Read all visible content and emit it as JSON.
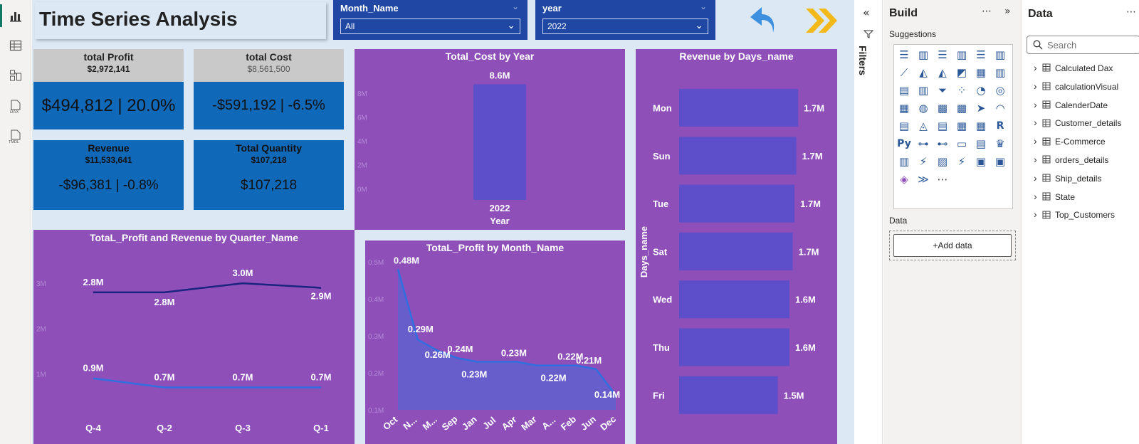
{
  "report": {
    "title": "Time Series Analysis"
  },
  "slicers": [
    {
      "name": "Month_Name",
      "value": "All"
    },
    {
      "name": "year",
      "value": "2022"
    }
  ],
  "nav": {
    "back_icon": "back-arrow-icon",
    "forward_icon": "double-chevron-right-icon"
  },
  "kpis": {
    "profit": {
      "name": "total Profit",
      "value": "$2,972,141",
      "big": "$494,812 | 20.0%"
    },
    "cost": {
      "name": "total Cost",
      "value": "$8,561,500",
      "big": "-$591,192 | -6.5%"
    },
    "revenue": {
      "name": "Revenue",
      "value": "$11,533,641",
      "big": "-$96,381 | -0.8%"
    },
    "quantity": {
      "name": "Total Quantity",
      "value": "$107,218",
      "big": "$107,218"
    }
  },
  "chart_data": [
    {
      "type": "bar",
      "title": "Total_Cost by Year",
      "categories": [
        "2022"
      ],
      "values": [
        8.6
      ],
      "data_labels": [
        "8.6M"
      ],
      "xlabel": "Year",
      "y_ticks": [
        "8M",
        "6M",
        "4M",
        "2M",
        "0M"
      ],
      "ylim": [
        0,
        9
      ]
    },
    {
      "type": "bar",
      "orientation": "horizontal",
      "title": "Revenue by Days_name",
      "categories": [
        "Mon",
        "Sun",
        "Tue",
        "Sat",
        "Wed",
        "Thu",
        "Fri"
      ],
      "values": [
        1.7,
        1.7,
        1.7,
        1.7,
        1.6,
        1.6,
        1.5
      ],
      "data_labels": [
        "1.7M",
        "1.7M",
        "1.7M",
        "1.7M",
        "1.6M",
        "1.6M",
        "1.5M"
      ],
      "ylabel": "Days_name"
    },
    {
      "type": "line",
      "title": "TotaL_Profit and Revenue by Quarter_Name",
      "categories": [
        "Q-4",
        "Q-2",
        "Q-3",
        "Q-1"
      ],
      "y_ticks": [
        "3M",
        "2M",
        "1M"
      ],
      "ylim": [
        0,
        3.3
      ],
      "series": [
        {
          "values": [
            2.8,
            2.8,
            3.0,
            2.9
          ],
          "labels": [
            "2.8M",
            "2.8M",
            "3.0M",
            "2.9M"
          ]
        },
        {
          "values": [
            0.9,
            0.7,
            0.7,
            0.7
          ],
          "labels": [
            "0.9M",
            "0.7M",
            "0.7M",
            "0.7M"
          ]
        }
      ]
    },
    {
      "type": "area",
      "title": "TotaL_Profit by Month_Name",
      "categories": [
        "Oct",
        "N...",
        "M...",
        "Sep",
        "Jan",
        "Jul",
        "Apr",
        "Mar",
        "A...",
        "Feb",
        "Jun",
        "Dec"
      ],
      "values": [
        0.48,
        0.29,
        0.26,
        0.24,
        0.23,
        0.23,
        0.23,
        0.22,
        0.22,
        0.22,
        0.21,
        0.14
      ],
      "data_labels": [
        "0.48M",
        "0.29M",
        "0.26M",
        "0.24M",
        "0.23M",
        "",
        "0.23M",
        "",
        "0.22M",
        "0.22M",
        "0.21M",
        "0.14M"
      ],
      "y_ticks": [
        "0.5M",
        "0.4M",
        "0.3M",
        "0.2M",
        "0.1M"
      ],
      "ylim": [
        0.1,
        0.5
      ]
    }
  ],
  "panes": {
    "filters_label": "Filters",
    "build_title": "Build",
    "suggestions_label": "Suggestions",
    "data_section_label": "Data",
    "add_data_label": "+Add data",
    "data_title": "Data",
    "search_placeholder": "Search",
    "tables": [
      "Calculated Dax",
      "calculationVisual",
      "CalenderDate",
      "Customer_details",
      "E-Commerce",
      "orders_details",
      "Ship_details",
      "State",
      "Top_Customers"
    ]
  },
  "colors": {
    "accent_purple": "#8e4fb9",
    "bar": "#5c4fc9",
    "kpi_blue": "#1068b8",
    "slicer_blue": "#1f47a3",
    "line_dark": "#1a237e",
    "line_light": "#2f6fe0",
    "arrow_blue": "#3d8fe0",
    "arrow_yellow": "#f3b81a"
  }
}
